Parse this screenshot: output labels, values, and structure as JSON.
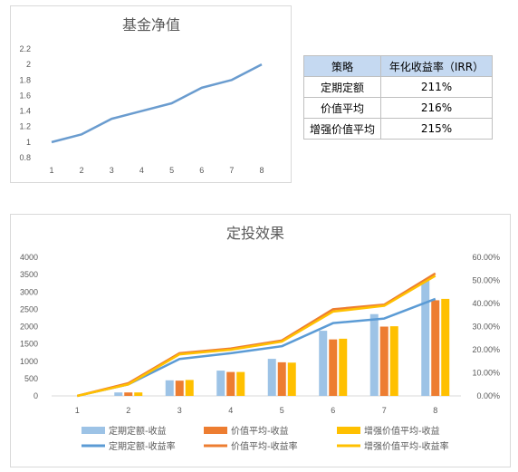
{
  "chart_data": [
    {
      "type": "line",
      "title": "基金净值",
      "x": [
        1,
        2,
        3,
        4,
        5,
        6,
        7,
        8
      ],
      "series": [
        {
          "values": [
            1.0,
            1.1,
            1.3,
            1.4,
            1.5,
            1.7,
            1.8,
            2.0
          ],
          "color": "#6a9ccf"
        }
      ],
      "ylim": [
        0.8,
        2.2
      ],
      "yticks": [
        "0.8",
        "1",
        "1.2",
        "1.4",
        "1.6",
        "1.8",
        "2",
        "2.2"
      ],
      "xticks": [
        "1",
        "2",
        "3",
        "4",
        "5",
        "6",
        "7",
        "8"
      ],
      "grid": false
    },
    {
      "type": "table",
      "headers": [
        "策略",
        "年化收益率（IRR）"
      ],
      "rows": [
        [
          "定期定额",
          "211%"
        ],
        [
          "价值平均",
          "216%"
        ],
        [
          "增强价值平均",
          "215%"
        ]
      ]
    },
    {
      "type": "bar",
      "title": "定投效果",
      "categories": [
        "1",
        "2",
        "3",
        "4",
        "5",
        "6",
        "7",
        "8"
      ],
      "ylim": [
        0,
        4000
      ],
      "y2lim": [
        0,
        0.6
      ],
      "yticks": [
        "0",
        "500",
        "1000",
        "1500",
        "2000",
        "2500",
        "3000",
        "3500",
        "4000"
      ],
      "y2ticks": [
        "0.00%",
        "10.00%",
        "20.00%",
        "30.00%",
        "40.00%",
        "50.00%",
        "60.00%"
      ],
      "series": [
        {
          "name": "定期定额-收益",
          "kind": "bar",
          "axis": "left",
          "color": "#9dc3e6",
          "values": [
            0,
            100,
            450,
            730,
            1070,
            1880,
            2360,
            3320
          ]
        },
        {
          "name": "价值平均-收益",
          "kind": "bar",
          "axis": "left",
          "color": "#ed7d31",
          "values": [
            0,
            100,
            440,
            690,
            970,
            1630,
            2000,
            2760
          ]
        },
        {
          "name": "增强价值平均-收益",
          "kind": "bar",
          "axis": "left",
          "color": "#ffc000",
          "values": [
            0,
            100,
            460,
            690,
            960,
            1650,
            2010,
            2800
          ]
        },
        {
          "name": "定期定额-收益率",
          "kind": "line",
          "axis": "right",
          "color": "#5b9bd5",
          "values": [
            0,
            0.05,
            0.16,
            0.185,
            0.215,
            0.315,
            0.335,
            0.42
          ]
        },
        {
          "name": "价值平均-收益率",
          "kind": "line",
          "axis": "right",
          "color": "#ed7d31",
          "values": [
            0,
            0.055,
            0.185,
            0.205,
            0.24,
            0.375,
            0.395,
            0.53
          ]
        },
        {
          "name": "增强价值平均-收益率",
          "kind": "line",
          "axis": "right",
          "color": "#ffc000",
          "values": [
            0,
            0.05,
            0.18,
            0.2,
            0.235,
            0.365,
            0.39,
            0.52
          ]
        }
      ],
      "legend": "bottom",
      "grid": false
    }
  ]
}
